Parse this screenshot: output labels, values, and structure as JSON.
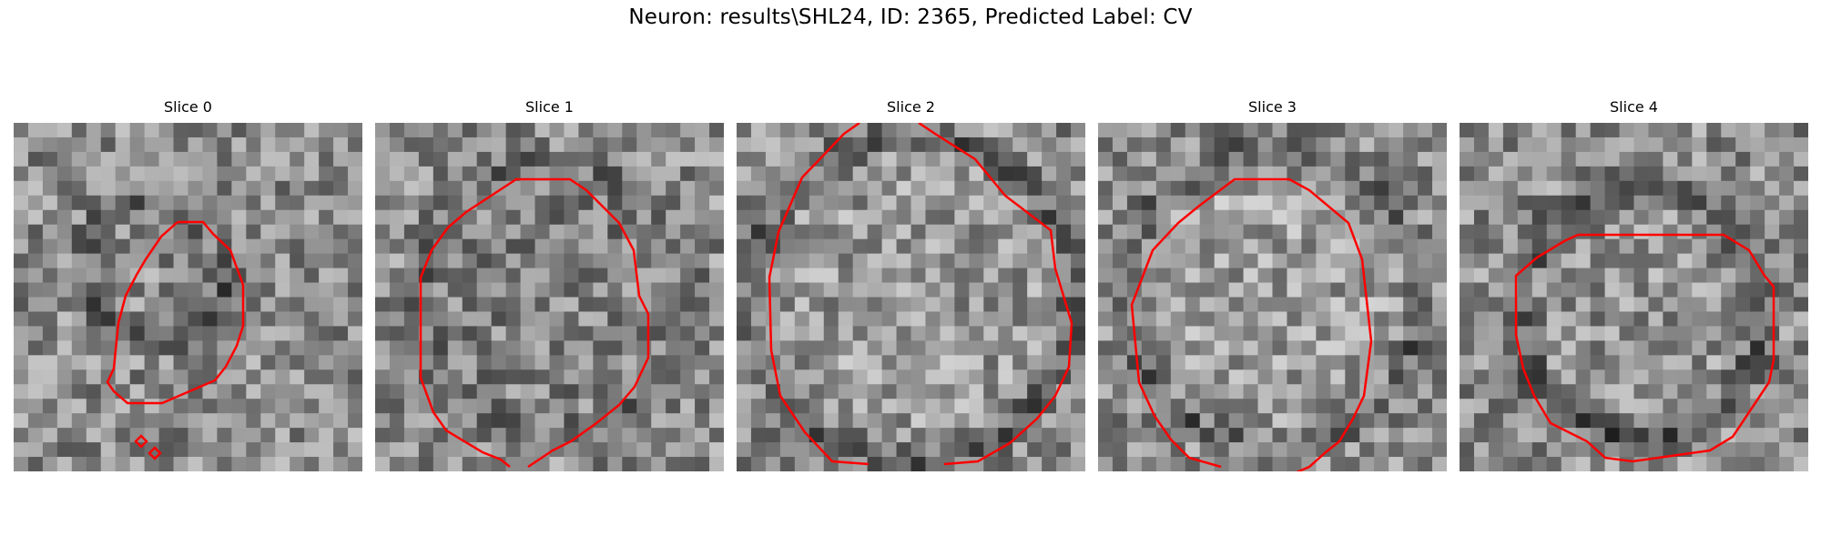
{
  "figure": {
    "title": "Neuron: results\\SHL24, ID: 2365, Predicted Label: CV",
    "contour_color": "#ff0000",
    "colormap": "gray"
  },
  "slices": [
    {
      "label": "Slice 0"
    },
    {
      "label": "Slice 1"
    },
    {
      "label": "Slice 2"
    },
    {
      "label": "Slice 3"
    },
    {
      "label": "Slice 4"
    }
  ]
}
